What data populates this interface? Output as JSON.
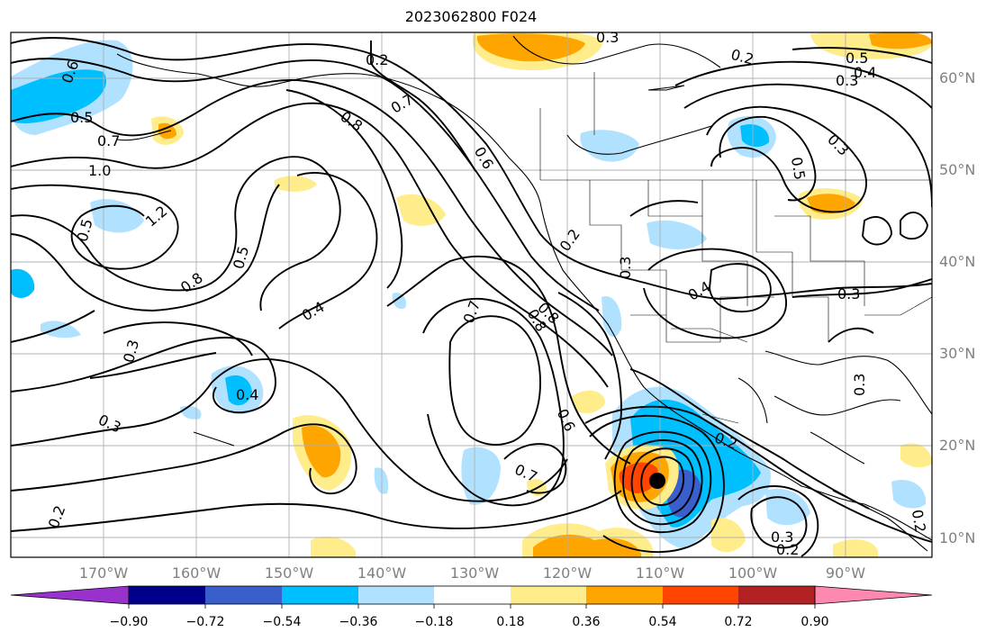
{
  "title": "2023062800 F024",
  "lat_labels": [
    "60°N",
    "50°N",
    "40°N",
    "30°N",
    "20°N",
    "10°N"
  ],
  "lon_labels": [
    "170°W",
    "160°W",
    "150°W",
    "140°W",
    "130°W",
    "120°W",
    "110°W",
    "100°W",
    "90°W"
  ],
  "colorbar": {
    "tick_labels": [
      "−0.90",
      "−0.72",
      "−0.54",
      "−0.36",
      "−0.18",
      "0.18",
      "0.36",
      "0.54",
      "0.72",
      "0.90"
    ],
    "colors": [
      "#9932cc",
      "#00008b",
      "#3a5fcd",
      "#00bfff",
      "#b0e2ff",
      "#ffffff",
      "#ffec8b",
      "#ffa500",
      "#ff4500",
      "#b22222",
      "#ff88b0"
    ]
  },
  "contour_labels": [
    "0.2",
    "0.3",
    "0.5",
    "0.4",
    "0.3",
    "0.6",
    "0.5",
    "0.7",
    "0.7",
    "0.8",
    "0.6",
    "1.0",
    "1.2",
    "0.5",
    "0.8",
    "0.5",
    "0.8",
    "0.4",
    "0.3",
    "0.4",
    "0.3",
    "0.2",
    "0.7",
    "0.8",
    "0.3",
    "0.4",
    "0.2",
    "0.6",
    "0.7",
    "0.2",
    "0.3",
    "0.2",
    "0.3",
    "0.2",
    "0.3",
    "0.5",
    "0.3",
    "0.2"
  ]
}
